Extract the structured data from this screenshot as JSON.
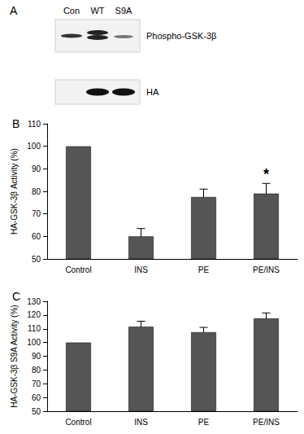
{
  "blot": {
    "title": "A",
    "lanes": [
      "Con",
      "WT",
      "S9A"
    ],
    "rows": [
      "Phospho-GSK-3β",
      "HA"
    ]
  },
  "chart_data": [
    {
      "type": "bar",
      "title": "B",
      "y_label": "HA-GSK-3β Activity (%)",
      "categories": [
        "Control",
        "INS",
        "PE",
        "PE/INS"
      ],
      "values": [
        100,
        60,
        77.5,
        79
      ],
      "errors": [
        null,
        3.5,
        3.5,
        4.5
      ],
      "color": "#555555",
      "ylim": [
        50,
        110
      ],
      "yticks": [
        50,
        60,
        70,
        80,
        90,
        100,
        110
      ],
      "grid": false,
      "annotations": [
        {
          "category": "PE/INS",
          "text": "*"
        }
      ]
    },
    {
      "type": "bar",
      "title": "C",
      "y_label": "HA-GSK-3β S9A Activity (%)",
      "categories": [
        "Control",
        "INS",
        "PE",
        "PE/INS"
      ],
      "values": [
        100,
        111.5,
        107.5,
        117.5
      ],
      "errors": [
        null,
        4,
        3.5,
        4
      ],
      "color": "#555555",
      "ylim": [
        50,
        130
      ],
      "yticks": [
        50,
        60,
        70,
        80,
        90,
        100,
        110,
        120,
        130
      ],
      "grid": false
    }
  ]
}
